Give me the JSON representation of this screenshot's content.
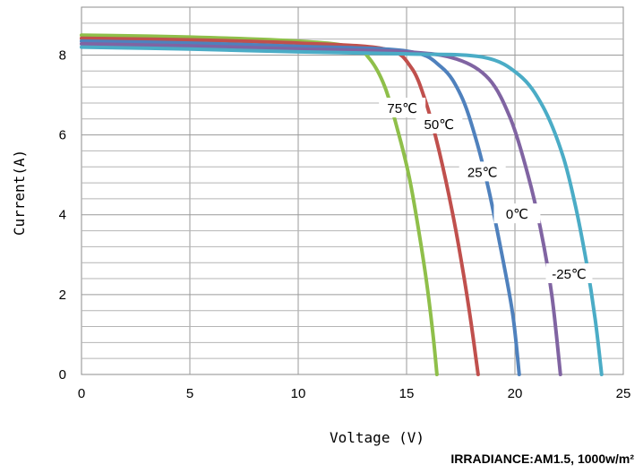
{
  "chart_data": {
    "type": "line",
    "xlabel": "Voltage (V)",
    "ylabel": "Current(A)",
    "xlim": [
      0,
      25
    ],
    "ylim": [
      0,
      9.2
    ],
    "x_ticks": [
      "0",
      "5",
      "10",
      "15",
      "20",
      "25"
    ],
    "y_ticks": [
      "0",
      "2",
      "4",
      "6",
      "8"
    ],
    "grid": true,
    "annotation": "IRRADIANCE:AM1.5, 1000w/m²",
    "series": [
      {
        "name": "75℃",
        "color": "#8fbf4a",
        "points": [
          [
            0,
            8.5
          ],
          [
            5,
            8.45
          ],
          [
            10,
            8.35
          ],
          [
            12.5,
            8.2
          ],
          [
            13.3,
            7.9
          ],
          [
            14,
            7.2
          ],
          [
            14.6,
            6.1
          ],
          [
            15.1,
            5.0
          ],
          [
            15.5,
            3.8
          ],
          [
            15.9,
            2.4
          ],
          [
            16.2,
            1.1
          ],
          [
            16.4,
            0
          ]
        ]
      },
      {
        "name": "50℃",
        "color": "#c0504d",
        "points": [
          [
            0,
            8.42
          ],
          [
            5,
            8.38
          ],
          [
            10,
            8.3
          ],
          [
            14,
            8.15
          ],
          [
            15.2,
            7.7
          ],
          [
            15.9,
            6.8
          ],
          [
            16.5,
            5.6
          ],
          [
            17.1,
            4.1
          ],
          [
            17.6,
            2.6
          ],
          [
            18.0,
            1.2
          ],
          [
            18.3,
            0
          ]
        ]
      },
      {
        "name": "25℃",
        "color": "#4f81bd",
        "points": [
          [
            0,
            8.35
          ],
          [
            5,
            8.3
          ],
          [
            10,
            8.22
          ],
          [
            15,
            8.1
          ],
          [
            16.6,
            7.7
          ],
          [
            17.5,
            7.0
          ],
          [
            18.2,
            5.9
          ],
          [
            18.8,
            4.6
          ],
          [
            19.4,
            3.0
          ],
          [
            19.9,
            1.5
          ],
          [
            20.2,
            0
          ]
        ]
      },
      {
        "name": "0℃",
        "color": "#8064a2",
        "points": [
          [
            0,
            8.28
          ],
          [
            5,
            8.23
          ],
          [
            10,
            8.15
          ],
          [
            15,
            8.08
          ],
          [
            17.3,
            7.9
          ],
          [
            18.8,
            7.4
          ],
          [
            19.8,
            6.4
          ],
          [
            20.6,
            5.0
          ],
          [
            21.2,
            3.6
          ],
          [
            21.7,
            2.0
          ],
          [
            22.1,
            0
          ]
        ]
      },
      {
        "name": "-25℃",
        "color": "#4bacc6",
        "points": [
          [
            0,
            8.2
          ],
          [
            5,
            8.15
          ],
          [
            10,
            8.08
          ],
          [
            15,
            8.03
          ],
          [
            18.5,
            7.95
          ],
          [
            20.2,
            7.5
          ],
          [
            21.3,
            6.7
          ],
          [
            22.2,
            5.5
          ],
          [
            22.8,
            4.2
          ],
          [
            23.3,
            2.8
          ],
          [
            23.7,
            1.4
          ],
          [
            24.0,
            0
          ]
        ]
      }
    ]
  }
}
